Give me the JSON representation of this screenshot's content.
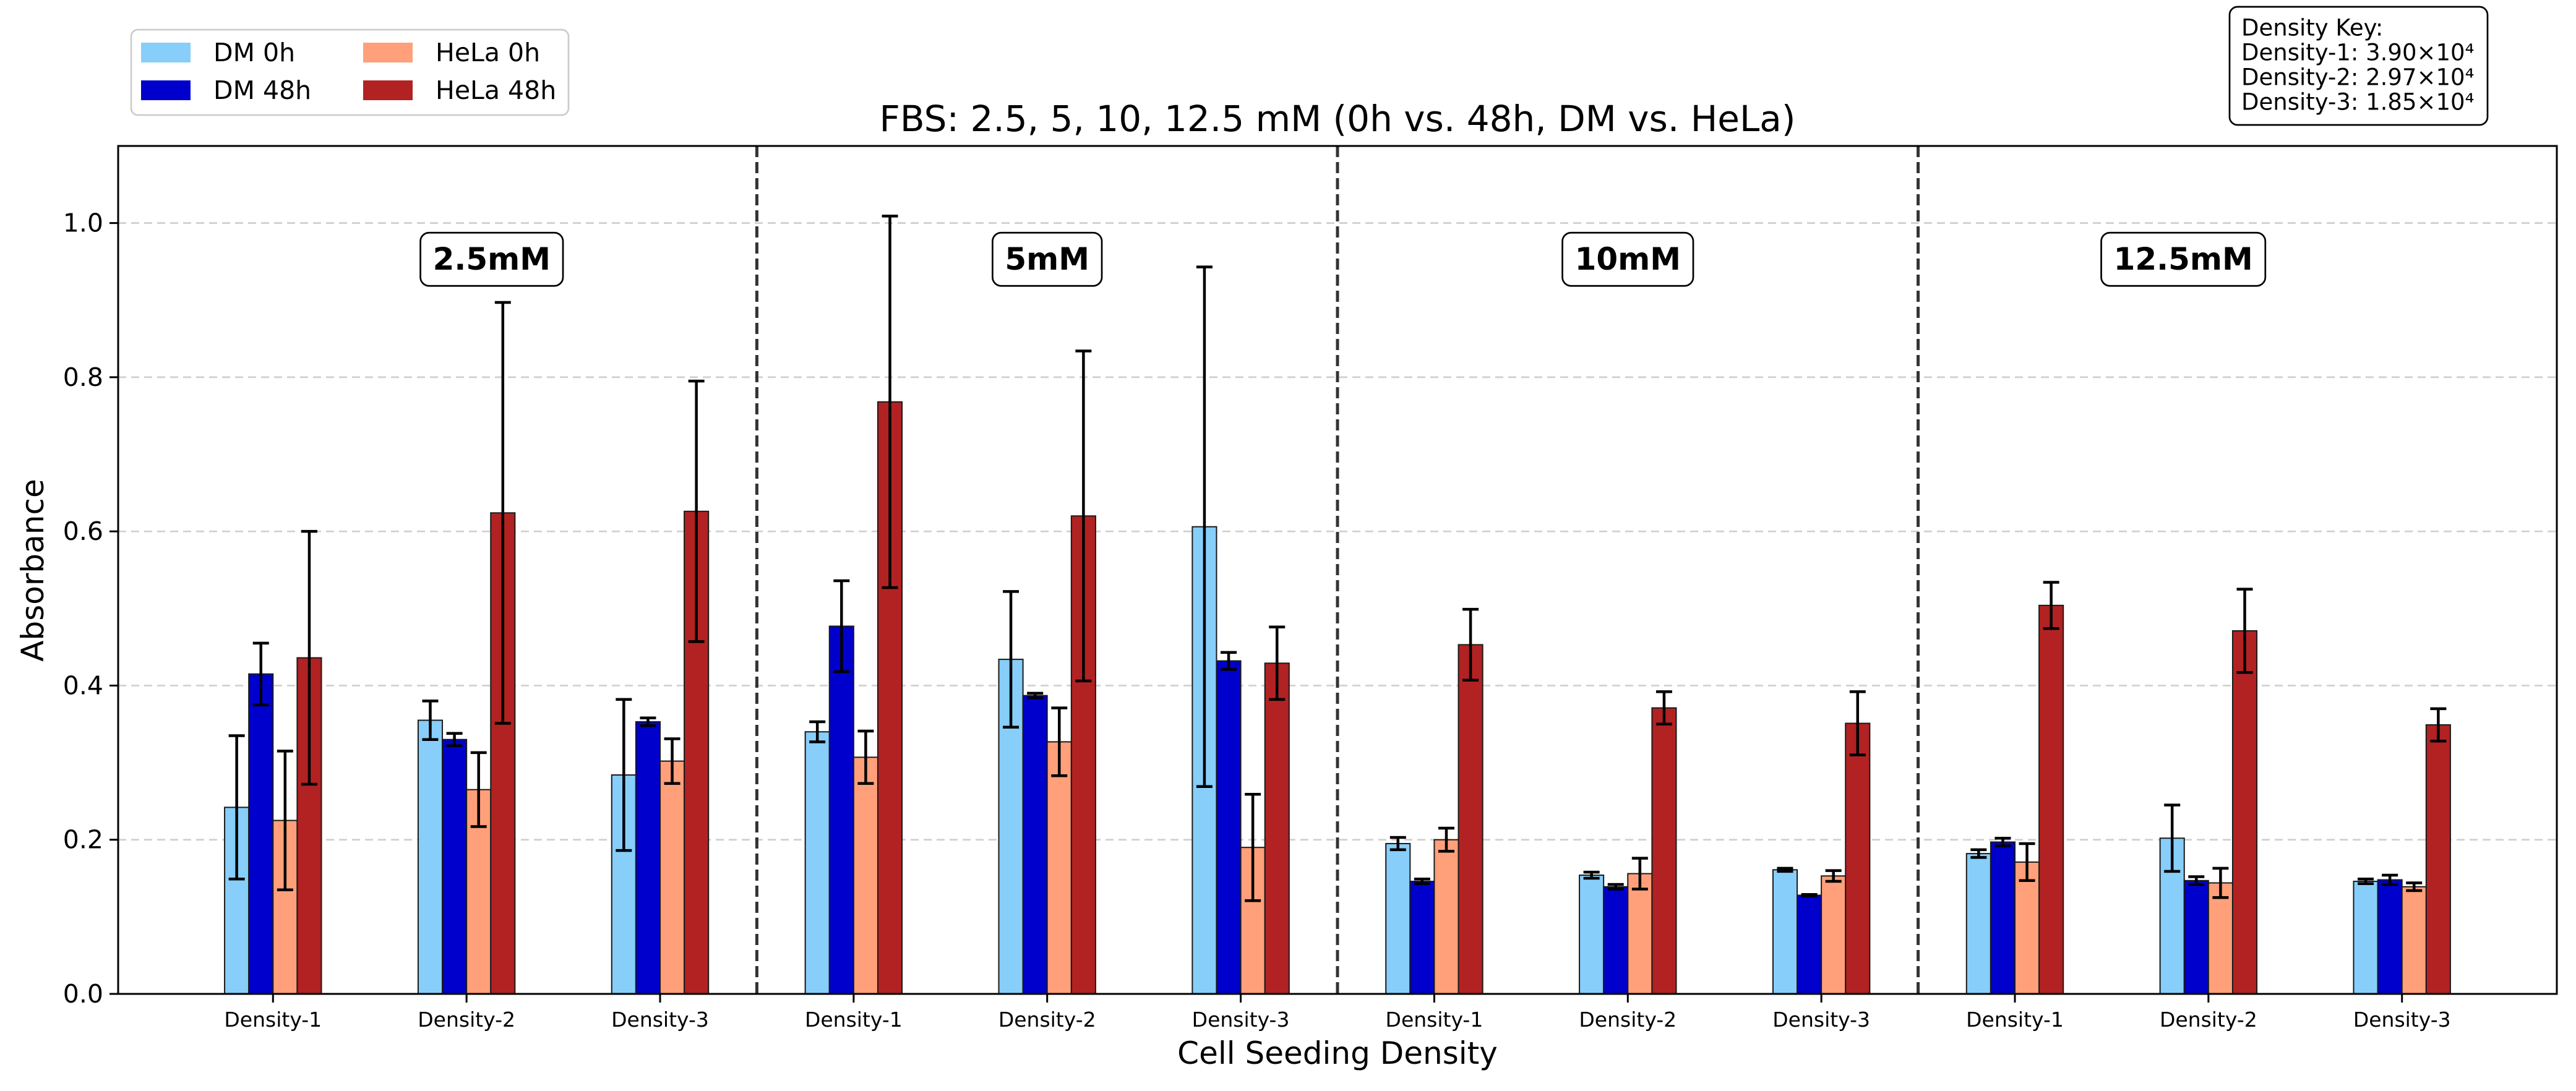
{
  "chart_data": {
    "type": "bar",
    "title": "FBS: 2.5, 5, 10, 12.5 mM (0h vs. 48h, DM vs. HeLa)",
    "xlabel": "Cell Seeding Density",
    "ylabel": "Absorbance",
    "ylim": [
      0,
      1.1
    ],
    "yticks": [
      0.0,
      0.2,
      0.4,
      0.6,
      0.8,
      1.0
    ],
    "ytick_labels": [
      "0.0",
      "0.2",
      "0.4",
      "0.6",
      "0.8",
      "1.0"
    ],
    "grid": {
      "axis": "y",
      "style": "dashed"
    },
    "legend_placement": "top-left",
    "groups": [
      {
        "label": "2.5mM",
        "categories": [
          "Density-1",
          "Density-2",
          "Density-3"
        ]
      },
      {
        "label": "5mM",
        "categories": [
          "Density-1",
          "Density-2",
          "Density-3"
        ]
      },
      {
        "label": "10mM",
        "categories": [
          "Density-1",
          "Density-2",
          "Density-3"
        ]
      },
      {
        "label": "12.5mM",
        "categories": [
          "Density-1",
          "Density-2",
          "Density-3"
        ]
      }
    ],
    "series": [
      {
        "name": "DM 0h",
        "color": "#87CEFA",
        "values": [
          0.242,
          0.355,
          0.284,
          0.34,
          0.434,
          0.606,
          0.195,
          0.154,
          0.161,
          0.182,
          0.202,
          0.146
        ],
        "errors": [
          0.093,
          0.025,
          0.098,
          0.013,
          0.088,
          0.337,
          0.008,
          0.004,
          0.002,
          0.005,
          0.043,
          0.003
        ]
      },
      {
        "name": "DM 48h",
        "color": "#0000CD",
        "values": [
          0.415,
          0.33,
          0.353,
          0.477,
          0.387,
          0.432,
          0.146,
          0.139,
          0.128,
          0.197,
          0.147,
          0.148
        ],
        "errors": [
          0.04,
          0.008,
          0.005,
          0.059,
          0.003,
          0.011,
          0.003,
          0.003,
          0.001,
          0.005,
          0.005,
          0.006
        ]
      },
      {
        "name": "HeLa 0h",
        "color": "#FFA07A",
        "values": [
          0.225,
          0.265,
          0.302,
          0.307,
          0.327,
          0.19,
          0.2,
          0.156,
          0.153,
          0.171,
          0.144,
          0.139
        ],
        "errors": [
          0.09,
          0.048,
          0.029,
          0.034,
          0.044,
          0.069,
          0.015,
          0.02,
          0.007,
          0.024,
          0.019,
          0.005
        ]
      },
      {
        "name": "HeLa 48h",
        "color": "#B22222",
        "values": [
          0.436,
          0.624,
          0.626,
          0.768,
          0.62,
          0.429,
          0.453,
          0.371,
          0.351,
          0.504,
          0.471,
          0.349
        ],
        "errors": [
          0.164,
          0.273,
          0.169,
          0.241,
          0.214,
          0.047,
          0.046,
          0.021,
          0.041,
          0.03,
          0.054,
          0.021
        ]
      }
    ],
    "key_box": {
      "placement": "top-right",
      "title": "Density Key:",
      "lines": [
        "Density-1: 3.90×10⁴",
        "Density-2: 2.97×10⁴",
        "Density-3: 1.85×10⁴"
      ]
    }
  }
}
